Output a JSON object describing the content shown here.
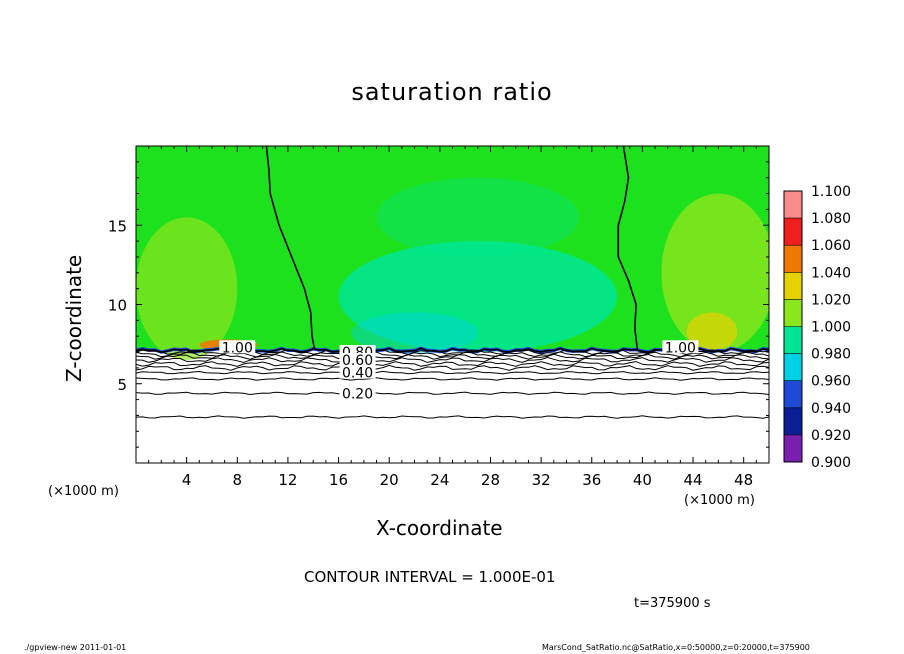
{
  "figure": {
    "x_unit_left": "(×1000 m)",
    "x_unit_right": "(×1000 m)",
    "contour_interval": "CONTOUR INTERVAL = 1.000E-01",
    "time_label": "t=375900 s",
    "footer_left": "./gpview-new  2011-01-01",
    "footer_right": "MarsCond_SatRatio.nc@SatRatio,x=0:50000,z=0:20000,t=375900"
  },
  "chart_data": {
    "type": "heatmap",
    "title": "saturation ratio",
    "xlabel": "X-coordinate",
    "ylabel": "Z-coordinate",
    "xlim": [
      0,
      50
    ],
    "ylim": [
      0,
      20
    ],
    "x_ticks": [
      4,
      8,
      12,
      16,
      20,
      24,
      28,
      32,
      36,
      40,
      44,
      48
    ],
    "y_ticks": [
      5,
      10,
      15
    ],
    "colorbar": {
      "levels": [
        0.9,
        0.92,
        0.94,
        0.96,
        0.98,
        1.0,
        1.02,
        1.04,
        1.06,
        1.08,
        1.1
      ],
      "level_labels": [
        "0.900",
        "0.920",
        "0.940",
        "0.960",
        "0.980",
        "1.000",
        "1.020",
        "1.040",
        "1.060",
        "1.080",
        "1.100"
      ],
      "colors": [
        "#7a1fb0",
        "#0a1e96",
        "#1e4ad7",
        "#00d2e6",
        "#00e696",
        "#1ee11e",
        "#8ce61e",
        "#e6d200",
        "#f07800",
        "#f01e1e",
        "#fa8c8c"
      ]
    },
    "contour_labels": [
      {
        "text": "1.00",
        "x": 8.0,
        "z": 7.3
      },
      {
        "text": "1.00",
        "x": 43.0,
        "z": 7.3
      },
      {
        "text": "0.80",
        "x": 17.5,
        "z": 7.0
      },
      {
        "text": "0.60",
        "x": 17.5,
        "z": 6.5
      },
      {
        "text": "0.40",
        "x": 17.5,
        "z": 5.7
      },
      {
        "text": "0.20",
        "x": 17.5,
        "z": 4.4
      }
    ],
    "boundary_z": 7.1,
    "lower_contours_z": [
      7.0,
      6.85,
      6.7,
      6.5,
      6.25,
      6.0,
      5.7,
      5.3,
      4.4,
      2.9
    ],
    "unity_contour_left": [
      [
        10.3,
        20
      ],
      [
        10.5,
        18.5
      ],
      [
        10.6,
        17
      ],
      [
        11.3,
        15
      ],
      [
        12.3,
        13
      ],
      [
        13.3,
        11
      ],
      [
        13.8,
        9.5
      ],
      [
        13.9,
        8
      ],
      [
        14.1,
        7.2
      ]
    ],
    "unity_contour_right": [
      [
        38.5,
        20
      ],
      [
        38.9,
        18
      ],
      [
        38.6,
        16.5
      ],
      [
        38.1,
        15
      ],
      [
        38.1,
        13
      ],
      [
        38.9,
        11.5
      ],
      [
        39.5,
        10
      ],
      [
        39.4,
        8.5
      ],
      [
        39.6,
        7.2
      ]
    ]
  }
}
